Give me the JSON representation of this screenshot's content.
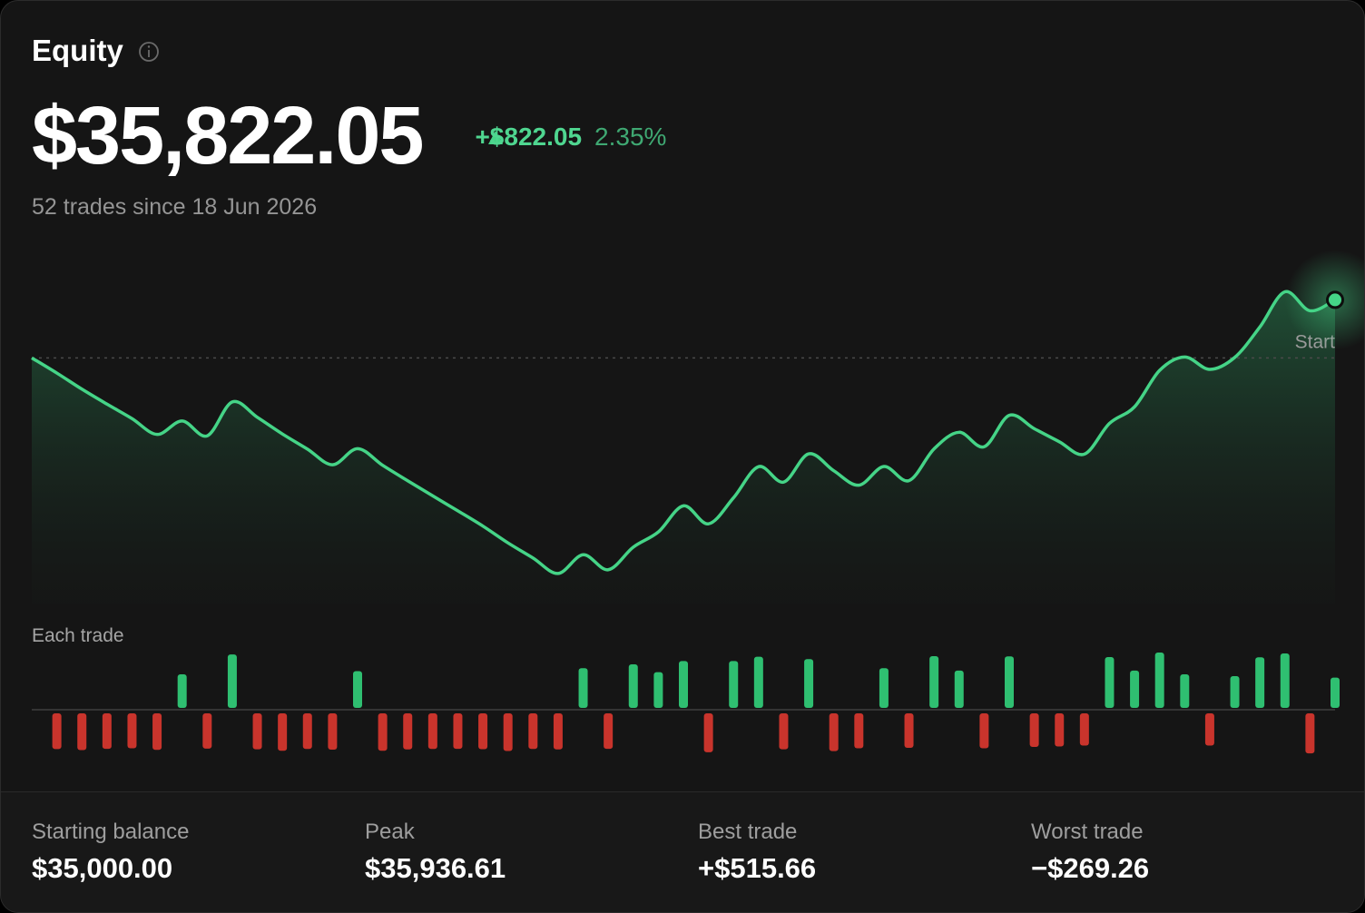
{
  "header": {
    "title": "Equity",
    "value": "$35,822.05",
    "change": "+$822.05",
    "change_pct": "2.35%",
    "subtitle": "52 trades since 18 Jun 2026"
  },
  "chart_data": [
    {
      "type": "line",
      "color": "#45d487",
      "ylim": [
        31700,
        36200
      ],
      "start_label": "Start",
      "values": [
        35000,
        34785,
        34557,
        34345,
        34140,
        33916,
        34106,
        33896,
        34376,
        34158,
        33922,
        33708,
        33486,
        33714,
        33478,
        33259,
        33045,
        32833,
        32617,
        32379,
        32165,
        31946,
        32211,
        31999,
        32319,
        32534,
        32904,
        32649,
        33019,
        33459,
        33241,
        33641,
        33401,
        33196,
        33461,
        33261,
        33711,
        33946,
        33741,
        34186.66,
        33996.66,
        33811.66,
        33636.66,
        34071.66,
        34306.66,
        34822.32,
        35012.32,
        34837.32,
        35007.32,
        35437.32,
        35936.61,
        35667.35,
        35822.05
      ]
    },
    {
      "type": "bar",
      "title": "Each trade",
      "positive_color": "#2fbf71",
      "negative_color": "#c9342c",
      "values": [
        -215,
        -228,
        -212,
        -205,
        -224,
        190,
        -210,
        480,
        -218,
        -236,
        -214,
        -222,
        228,
        -236,
        -219,
        -214,
        -212,
        -216,
        -238,
        -214,
        -219,
        265,
        -212,
        320,
        215,
        370,
        -255,
        370,
        440,
        -218,
        400,
        -240,
        -205,
        265,
        -200,
        450,
        235,
        -205,
        445.66,
        -190,
        -185,
        -175,
        435,
        235,
        515.66,
        190,
        -175,
        170,
        430,
        499.29,
        -269.26,
        154.7
      ]
    }
  ],
  "stats": [
    {
      "name": "Starting balance",
      "value": 35000,
      "value_label": "$35,000.00"
    },
    {
      "name": "Peak",
      "value": 35936.61,
      "value_label": "$35,936.61"
    },
    {
      "name": "Best trade",
      "value": 515.66,
      "value_label": "+$515.66"
    },
    {
      "name": "Worst trade",
      "value": -269.26,
      "value_label": "−$269.26"
    }
  ]
}
